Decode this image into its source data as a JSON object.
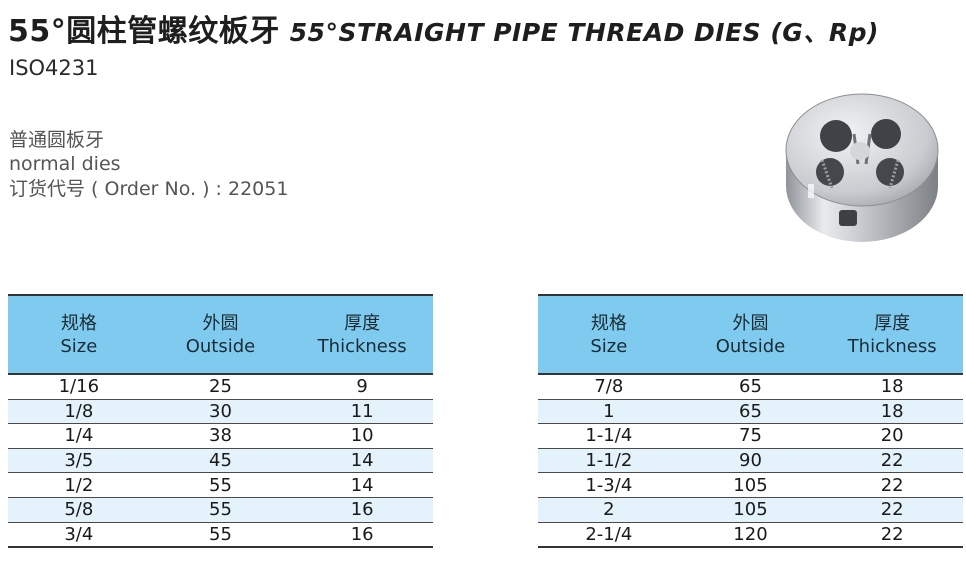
{
  "header": {
    "title_cn": "55°圆柱管螺纹板牙",
    "title_en": "55°STRAIGHT PIPE THREAD DIES (G、Rp)",
    "standard": "ISO4231"
  },
  "description": {
    "line1": "普通圆板牙",
    "line2": "normal dies",
    "line3": "订货代号 ( Order No. ) : 22051"
  },
  "table_headers": {
    "size_cn": "规格",
    "size_en": "Size",
    "outside_cn": "外圆",
    "outside_en": "Outside",
    "thickness_cn": "厚度",
    "thickness_en": "Thickness"
  },
  "left_table": [
    {
      "size": "1/16",
      "outside": "25",
      "thickness": "9"
    },
    {
      "size": "1/8",
      "outside": "30",
      "thickness": "11"
    },
    {
      "size": "1/4",
      "outside": "38",
      "thickness": "10"
    },
    {
      "size": "3/5",
      "outside": "45",
      "thickness": "14"
    },
    {
      "size": "1/2",
      "outside": "55",
      "thickness": "14"
    },
    {
      "size": "5/8",
      "outside": "55",
      "thickness": "16"
    },
    {
      "size": "3/4",
      "outside": "55",
      "thickness": "16"
    }
  ],
  "right_table": [
    {
      "size": "7/8",
      "outside": "65",
      "thickness": "18"
    },
    {
      "size": "1",
      "outside": "65",
      "thickness": "18"
    },
    {
      "size": "1-1/4",
      "outside": "75",
      "thickness": "20"
    },
    {
      "size": "1-1/2",
      "outside": "90",
      "thickness": "22"
    },
    {
      "size": "1-3/4",
      "outside": "105",
      "thickness": "22"
    },
    {
      "size": "2",
      "outside": "105",
      "thickness": "22"
    },
    {
      "size": "2-1/4",
      "outside": "120",
      "thickness": "22"
    }
  ]
}
